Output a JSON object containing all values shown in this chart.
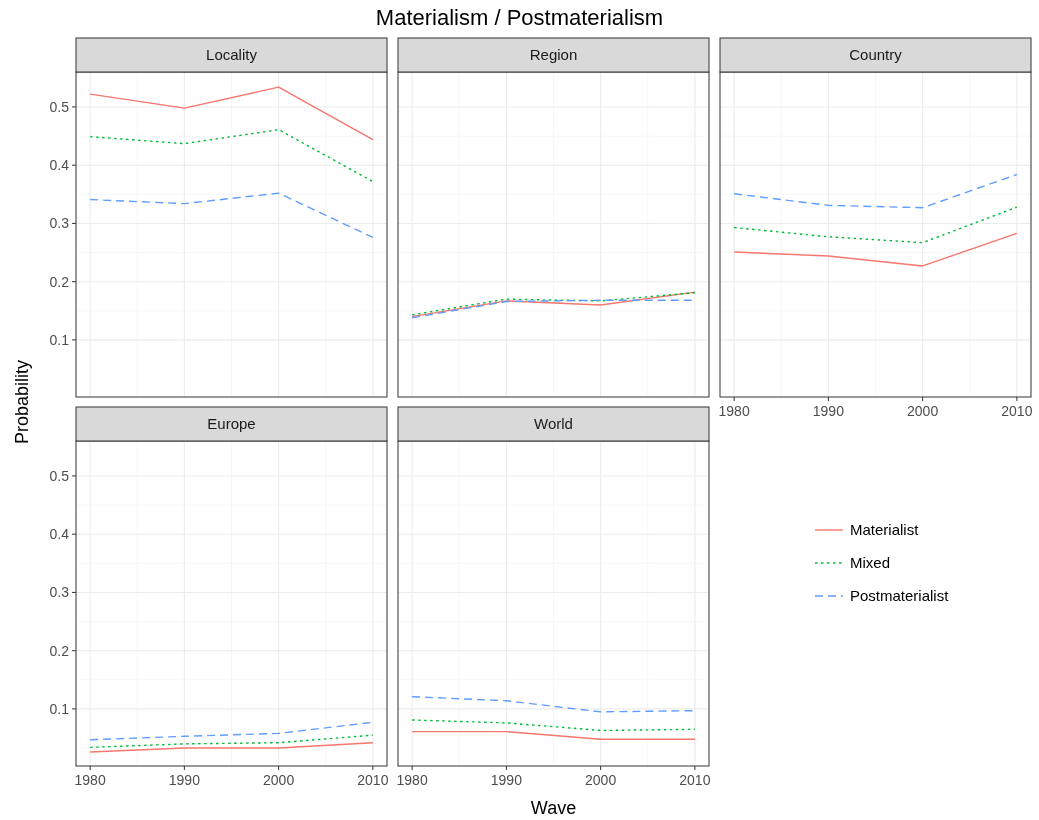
{
  "chart_data": [
    {
      "type": "line",
      "title": "Locality",
      "legend": "right",
      "annotations": [
        "Materialism / Postmaterialism"
      ],
      "x": [
        1980,
        1990,
        2000,
        2010
      ],
      "xlim": [
        1978.5,
        2011.5
      ],
      "xticks": [
        1980,
        1990,
        2000,
        2010
      ],
      "ylim": [
        0.002,
        0.56
      ],
      "yticks": [
        0.1,
        0.2,
        0.3,
        0.4,
        0.5
      ],
      "grid": true,
      "tick_labels": "y",
      "series": [
        {
          "name": "Materialist",
          "color": "#f8766d",
          "line_style": "solid",
          "values": [
            0.522,
            0.498,
            0.534,
            0.444
          ]
        },
        {
          "name": "Mixed",
          "color": "#00ba38",
          "line_style": "dotted",
          "values": [
            0.449,
            0.437,
            0.461,
            0.372
          ]
        },
        {
          "name": "Postmaterialist",
          "color": "#619cff",
          "line_style": "dashed",
          "values": [
            0.341,
            0.334,
            0.352,
            0.276
          ]
        }
      ]
    },
    {
      "type": "line",
      "title": "Region",
      "x": [
        1980,
        1990,
        2000,
        2010
      ],
      "xlim": [
        1978.5,
        2011.5
      ],
      "xticks": [
        1980,
        1990,
        2000,
        2010
      ],
      "ylim": [
        0.002,
        0.56
      ],
      "yticks": [
        0.1,
        0.2,
        0.3,
        0.4,
        0.5
      ],
      "grid": true,
      "tick_labels": false,
      "series": [
        {
          "color": "#f8766d",
          "line_style": "solid",
          "values": [
            0.14,
            0.167,
            0.16,
            0.182
          ]
        },
        {
          "color": "#00ba38",
          "line_style": "dotted",
          "values": [
            0.143,
            0.17,
            0.167,
            0.181
          ]
        },
        {
          "color": "#619cff",
          "line_style": "dashed",
          "values": [
            0.138,
            0.166,
            0.168,
            0.168
          ]
        }
      ]
    },
    {
      "type": "line",
      "title": "Country",
      "x": [
        1980,
        1990,
        2000,
        2010
      ],
      "xlim": [
        1978.5,
        2011.5
      ],
      "xticks": [
        1980,
        1990,
        2000,
        2010
      ],
      "ylim": [
        0.002,
        0.56
      ],
      "yticks": [
        0.1,
        0.2,
        0.3,
        0.4,
        0.5
      ],
      "grid": true,
      "tick_labels": "x",
      "series": [
        {
          "color": "#f8766d",
          "line_style": "solid",
          "values": [
            0.251,
            0.244,
            0.227,
            0.283
          ]
        },
        {
          "color": "#00ba38",
          "line_style": "dotted",
          "values": [
            0.293,
            0.277,
            0.267,
            0.328
          ]
        },
        {
          "color": "#619cff",
          "line_style": "dashed",
          "values": [
            0.351,
            0.331,
            0.327,
            0.384
          ]
        }
      ]
    },
    {
      "type": "line",
      "title": "Europe",
      "ylabel": "Probability",
      "x": [
        1980,
        1990,
        2000,
        2010
      ],
      "xlim": [
        1978.5,
        2011.5
      ],
      "xticks": [
        1980,
        1990,
        2000,
        2010
      ],
      "ylim": [
        0.002,
        0.56
      ],
      "yticks": [
        0.1,
        0.2,
        0.3,
        0.4,
        0.5
      ],
      "grid": true,
      "series": [
        {
          "color": "#f8766d",
          "line_style": "solid",
          "values": [
            0.026,
            0.033,
            0.033,
            0.042
          ]
        },
        {
          "color": "#00ba38",
          "line_style": "dotted",
          "values": [
            0.034,
            0.04,
            0.042,
            0.055
          ]
        },
        {
          "color": "#619cff",
          "line_style": "dashed",
          "values": [
            0.047,
            0.053,
            0.058,
            0.077
          ]
        }
      ]
    },
    {
      "type": "line",
      "title": "World",
      "xlabel": "Wave",
      "x": [
        1980,
        1990,
        2000,
        2010
      ],
      "xlim": [
        1978.5,
        2011.5
      ],
      "xticks": [
        1980,
        1990,
        2000,
        2010
      ],
      "ylim": [
        0.002,
        0.56
      ],
      "yticks": [
        0.1,
        0.2,
        0.3,
        0.4,
        0.5
      ],
      "grid": true,
      "tick_labels": "x",
      "series": [
        {
          "color": "#f8766d",
          "line_style": "solid",
          "values": [
            0.061,
            0.061,
            0.048,
            0.048
          ]
        },
        {
          "color": "#00ba38",
          "line_style": "dotted",
          "values": [
            0.081,
            0.076,
            0.063,
            0.065
          ]
        },
        {
          "color": "#619cff",
          "line_style": "dashed",
          "values": [
            0.121,
            0.114,
            0.095,
            0.097
          ]
        }
      ]
    }
  ]
}
